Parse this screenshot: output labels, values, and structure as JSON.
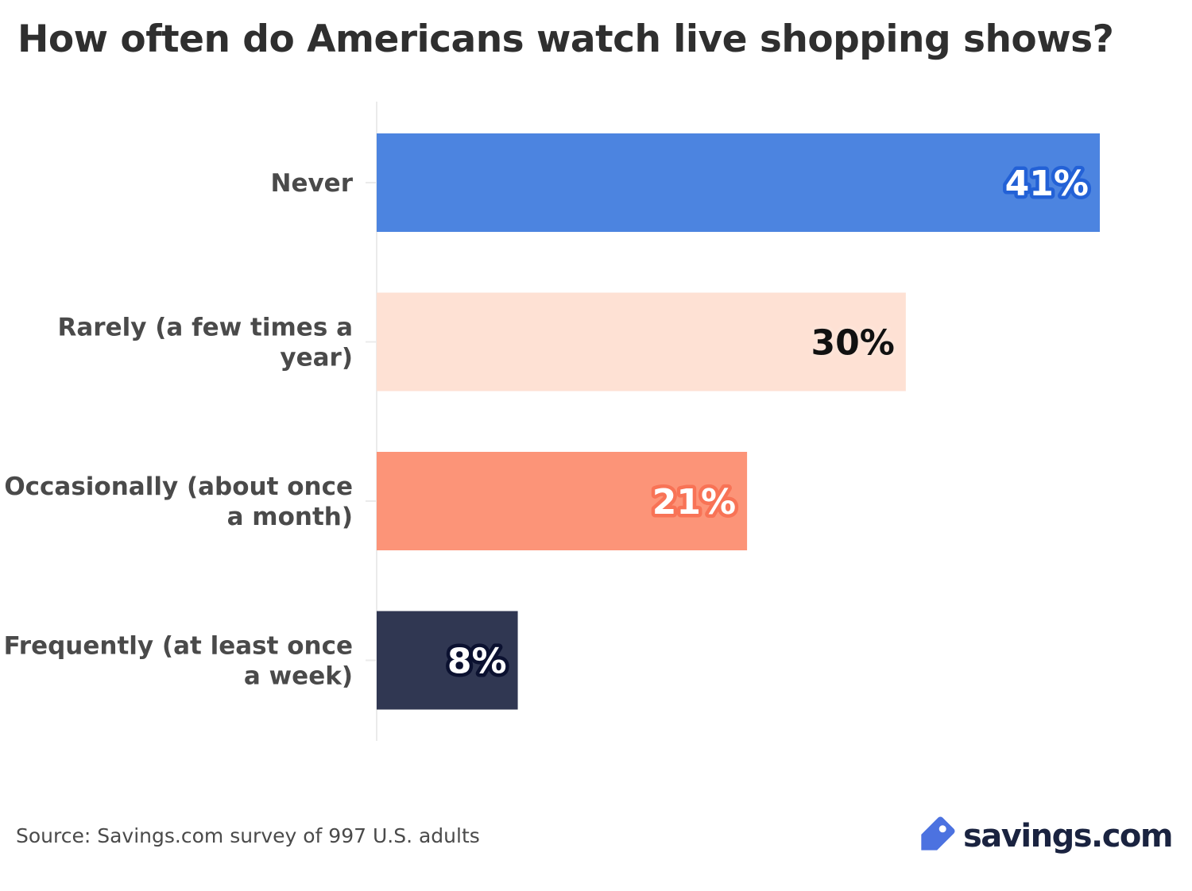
{
  "title": "How often do Americans watch live shopping shows?",
  "chart_data": {
    "type": "bar",
    "orientation": "horizontal",
    "title": "How often do Americans watch live shopping shows?",
    "categories": [
      [
        "Never"
      ],
      [
        "Rarely (a few times a",
        "year)"
      ],
      [
        "Occasionally (about once",
        "a month)"
      ],
      [
        "Frequently (at least once",
        "a week)"
      ]
    ],
    "values": [
      41,
      30,
      21,
      8
    ],
    "value_labels": [
      "41%",
      "30%",
      "21%",
      "8%"
    ],
    "bar_colors": [
      "#4c84e0",
      "#fee1d4",
      "#fc9478",
      "#303752"
    ],
    "label_colors": [
      "#ffffff",
      "#111111",
      "#ffffff",
      "#ffffff"
    ],
    "label_halo_colors": [
      "#2361d6",
      "#fde3d7",
      "#f87356",
      "#0b1130"
    ],
    "xlim": [
      0,
      41
    ],
    "xlabel": "",
    "ylabel": "",
    "grid": false,
    "legend": "none"
  },
  "footer": {
    "source": "Source: Savings.com survey of 997 U.S. adults",
    "brand": "savings.com",
    "brand_icon": "price-tag-icon",
    "brand_icon_color": "#4c72e0"
  }
}
